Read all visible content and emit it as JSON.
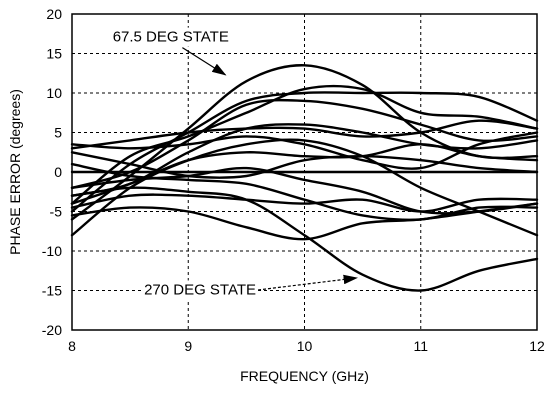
{
  "chart_data": {
    "type": "line",
    "title": "",
    "xlabel": "FREQUENCY (GHz)",
    "ylabel": "PHASE ERROR  (degrees)",
    "xlim": [
      8,
      12
    ],
    "ylim": [
      -20,
      20
    ],
    "xticks": [
      "8",
      "9",
      "10",
      "11",
      "12"
    ],
    "yticks": [
      "-20",
      "-15",
      "-10",
      "-5",
      "0",
      "5",
      "10",
      "15",
      "20"
    ],
    "grid": "dashed",
    "line_color": "#000000",
    "annotations": [
      {
        "text": "67.5 DEG STATE",
        "x": 8.35,
        "y": 16.5,
        "arrow_to": [
          9.32,
          12.3
        ]
      },
      {
        "text": "270 DEG STATE",
        "x": 8.62,
        "y": -15.5,
        "arrow_to": [
          10.45,
          -13.4
        ]
      }
    ],
    "x": [
      8.0,
      8.5,
      9.0,
      9.5,
      10.0,
      10.5,
      11.0,
      11.5,
      12.0
    ],
    "series": [
      {
        "values": [
          -6.0,
          -0.5,
          5.5,
          11.5,
          13.5,
          11.0,
          5.0,
          2.0,
          2.0
        ]
      },
      {
        "values": [
          -8.0,
          -2.0,
          1.5,
          3.5,
          4.0,
          2.0,
          -2.0,
          -5.0,
          -8.0
        ]
      },
      {
        "values": [
          -4.0,
          2.0,
          4.5,
          7.5,
          10.5,
          10.5,
          7.5,
          7.0,
          5.5
        ]
      },
      {
        "values": [
          -5.0,
          1.0,
          5.0,
          9.0,
          10.0,
          10.0,
          10.0,
          9.5,
          6.5
        ]
      },
      {
        "values": [
          -2.0,
          0.0,
          4.0,
          8.5,
          9.0,
          8.0,
          6.0,
          4.0,
          4.5
        ]
      },
      {
        "values": [
          -3.0,
          -1.5,
          2.5,
          5.5,
          6.0,
          5.0,
          3.5,
          3.0,
          4.0
        ]
      },
      {
        "values": [
          3.5,
          3.0,
          3.5,
          4.5,
          3.5,
          1.5,
          0.5,
          3.5,
          5.0
        ]
      },
      {
        "values": [
          3.0,
          4.0,
          5.0,
          5.5,
          5.5,
          4.5,
          5.0,
          6.5,
          5.5
        ]
      },
      {
        "values": [
          -4.0,
          -1.5,
          1.5,
          2.5,
          2.0,
          2.0,
          3.5,
          2.0,
          1.5
        ]
      },
      {
        "values": [
          2.5,
          1.0,
          -0.5,
          -0.5,
          1.5,
          2.0,
          1.5,
          0.5,
          0.0
        ]
      },
      {
        "values": [
          0.0,
          0.0,
          0.0,
          0.0,
          0.0,
          0.0,
          0.0,
          0.0,
          0.0
        ]
      },
      {
        "values": [
          -2.0,
          -1.0,
          -0.5,
          0.5,
          -1.0,
          -2.5,
          -5.0,
          -5.0,
          -4.0
        ]
      },
      {
        "values": [
          1.0,
          -0.5,
          -1.0,
          -1.5,
          -3.5,
          -5.5,
          -6.0,
          -4.5,
          -4.5
        ]
      },
      {
        "values": [
          -4.5,
          -3.0,
          -3.0,
          -3.5,
          -4.0,
          -3.5,
          -5.0,
          -3.5,
          -3.5
        ]
      },
      {
        "values": [
          -5.5,
          -4.5,
          -5.0,
          -7.0,
          -8.5,
          -6.5,
          -6.0,
          -5.0,
          -4.0
        ]
      },
      {
        "values": [
          -3.0,
          -2.0,
          -2.5,
          -3.5,
          -8.0,
          -13.0,
          -15.0,
          -12.5,
          -11.0
        ]
      }
    ]
  }
}
